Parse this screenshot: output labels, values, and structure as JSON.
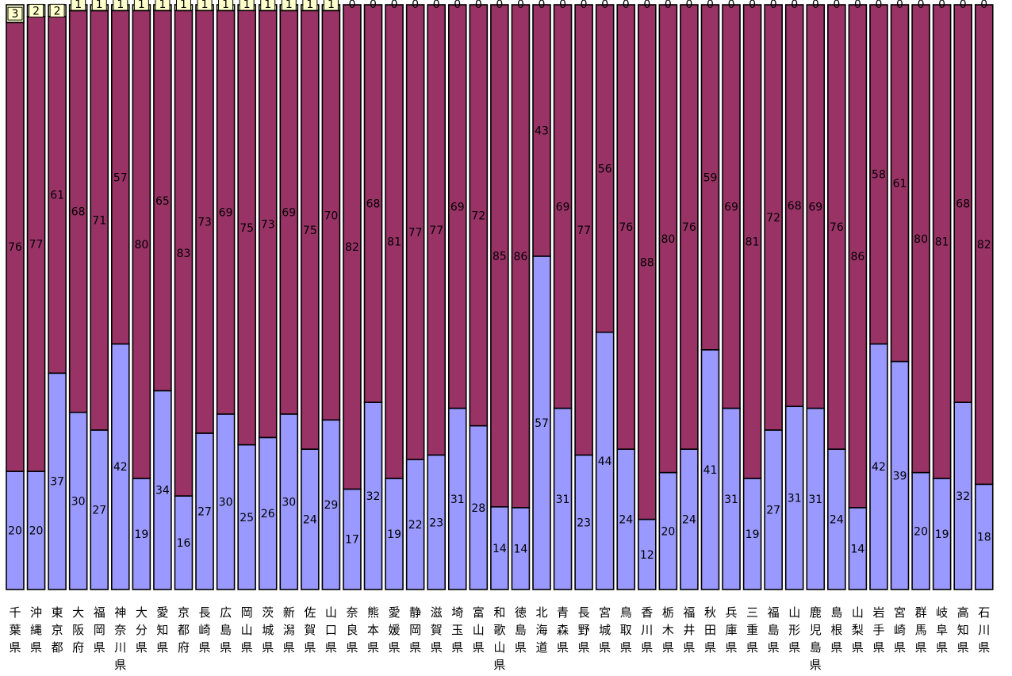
{
  "chart_data": {
    "type": "bar",
    "stacked": true,
    "normalized": true,
    "title": "",
    "xlabel": "",
    "ylabel": "",
    "ylim": [
      0,
      100
    ],
    "grid": false,
    "legend": "none",
    "colors": {
      "bottom": "#9999ff",
      "middle": "#993366",
      "top": "#ffffcc",
      "outline": "#000000"
    },
    "categories": [
      "千葉県",
      "沖縄県",
      "東京都",
      "大阪府",
      "福岡県",
      "神奈川県",
      "大分県",
      "愛知県",
      "京都府",
      "長崎県",
      "広島県",
      "岡山県",
      "茨城県",
      "新潟県",
      "佐賀県",
      "山口県",
      "奈良県",
      "熊本県",
      "愛媛県",
      "静岡県",
      "滋賀県",
      "埼玉県",
      "富山県",
      "和歌山県",
      "徳島県",
      "北海道",
      "青森県",
      "長野県",
      "宮城県",
      "鳥取県",
      "香川県",
      "栃木県",
      "福井県",
      "秋田県",
      "兵庫県",
      "三重県",
      "福島県",
      "山形県",
      "鹿児島県",
      "島根県",
      "山梨県",
      "岩手県",
      "宮崎県",
      "群馬県",
      "岐阜県",
      "高知県",
      "石川県"
    ],
    "series": [
      {
        "values": [
          20,
          20,
          37,
          30,
          27,
          42,
          19,
          34,
          16,
          27,
          30,
          25,
          26,
          30,
          24,
          29,
          17,
          32,
          19,
          22,
          23,
          31,
          28,
          14,
          14,
          57,
          31,
          23,
          44,
          24,
          12,
          20,
          24,
          41,
          31,
          19,
          27,
          31,
          31,
          24,
          14,
          42,
          39,
          20,
          19,
          32,
          18
        ]
      },
      {
        "values": [
          76,
          77,
          61,
          68,
          71,
          57,
          80,
          65,
          83,
          73,
          69,
          75,
          73,
          69,
          75,
          70,
          82,
          68,
          81,
          77,
          77,
          69,
          72,
          85,
          86,
          43,
          69,
          77,
          56,
          76,
          88,
          80,
          76,
          59,
          69,
          81,
          72,
          68,
          69,
          76,
          86,
          58,
          61,
          80,
          81,
          68,
          82
        ]
      },
      {
        "values": [
          3,
          2,
          2,
          1,
          1,
          1,
          1,
          1,
          1,
          1,
          1,
          1,
          1,
          1,
          1,
          1,
          0,
          0,
          0,
          0,
          0,
          0,
          0,
          0,
          0,
          0,
          0,
          0,
          0,
          0,
          0,
          0,
          0,
          0,
          0,
          0,
          0,
          0,
          0,
          0,
          0,
          0,
          0,
          0,
          0,
          0,
          0
        ]
      }
    ]
  }
}
